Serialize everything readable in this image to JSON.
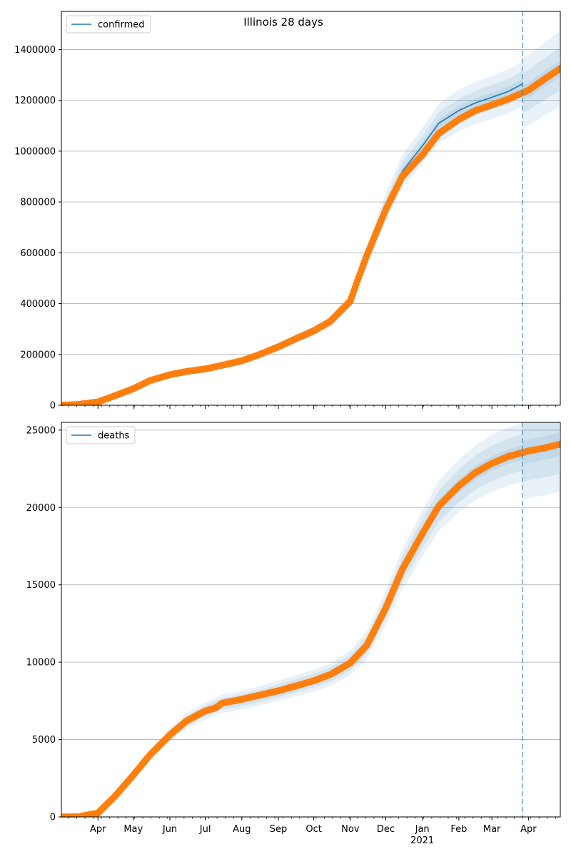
{
  "title": "Illinois 28 days",
  "colors": {
    "model_line": "#1f77b4",
    "band": "#1f77b4",
    "observed": "#ff7f0e",
    "vline": "#1f77b4",
    "grid": "#b0b0b0"
  },
  "chart_data": [
    {
      "type": "line",
      "series": [
        {
          "name": "confirmed",
          "x": [
            "2020-03-01",
            "2020-03-15",
            "2020-04-01",
            "2020-04-15",
            "2020-05-01",
            "2020-05-15",
            "2020-06-01",
            "2020-06-15",
            "2020-07-01",
            "2020-07-15",
            "2020-08-01",
            "2020-08-15",
            "2020-09-01",
            "2020-09-15",
            "2020-10-01",
            "2020-10-15",
            "2020-11-01",
            "2020-11-07",
            "2020-11-15",
            "2020-12-01",
            "2020-12-15",
            "2021-01-01",
            "2021-01-15",
            "2021-02-01",
            "2021-02-15",
            "2021-03-01",
            "2021-03-15",
            "2021-03-27"
          ],
          "values": [
            0,
            3000,
            13000,
            37000,
            65000,
            97000,
            120000,
            133000,
            143000,
            157000,
            175000,
            198000,
            230000,
            260000,
            293000,
            330000,
            410000,
            490000,
            590000,
            780000,
            920000,
            1020000,
            1110000,
            1160000,
            1190000,
            1212000,
            1235000,
            1265000
          ]
        }
      ],
      "observed": {
        "x": [
          "2020-03-01",
          "2020-03-15",
          "2020-04-01",
          "2020-04-15",
          "2020-05-01",
          "2020-05-15",
          "2020-06-01",
          "2020-06-15",
          "2020-07-01",
          "2020-07-15",
          "2020-08-01",
          "2020-08-15",
          "2020-09-01",
          "2020-09-15",
          "2020-10-01",
          "2020-10-15",
          "2020-11-01",
          "2020-11-07",
          "2020-11-15",
          "2020-12-01",
          "2020-12-15",
          "2021-01-01",
          "2021-01-15",
          "2021-02-01",
          "2021-02-15",
          "2021-03-01",
          "2021-03-15",
          "2021-04-01",
          "2021-04-15",
          "2021-04-28"
        ],
        "values": [
          0,
          3000,
          13000,
          37000,
          65000,
          97000,
          120000,
          133000,
          143000,
          157000,
          175000,
          198000,
          230000,
          260000,
          293000,
          330000,
          410000,
          490000,
          590000,
          770000,
          900000,
          985000,
          1070000,
          1125000,
          1160000,
          1182000,
          1205000,
          1240000,
          1285000,
          1325000
        ]
      },
      "band_spread": [
        0.015,
        0.04,
        0.07
      ],
      "forecast_date": "2021-03-27",
      "xlim": [
        "2020-03-01",
        "2021-04-28"
      ],
      "ylim": [
        0,
        1550000
      ],
      "yticks": [
        0,
        200000,
        400000,
        600000,
        800000,
        1000000,
        1200000,
        1400000
      ],
      "ytick_labels": [
        "0",
        "200000",
        "400000",
        "600000",
        "800000",
        "1000000",
        "1200000",
        "1400000"
      ],
      "grid": "horizontal",
      "legend_position": "top-left"
    },
    {
      "type": "line",
      "series": [
        {
          "name": "deaths",
          "x": [
            "2020-03-01",
            "2020-03-15",
            "2020-04-01",
            "2020-04-15",
            "2020-05-01",
            "2020-05-15",
            "2020-06-01",
            "2020-06-15",
            "2020-07-01",
            "2020-07-15",
            "2020-08-01",
            "2020-08-15",
            "2020-09-01",
            "2020-09-15",
            "2020-10-01",
            "2020-10-15",
            "2020-11-01",
            "2020-11-15",
            "2020-12-01",
            "2020-12-15",
            "2021-01-01",
            "2021-01-15",
            "2021-02-01",
            "2021-02-15",
            "2021-03-01",
            "2021-03-15",
            "2021-03-27"
          ],
          "values": [
            0,
            10,
            250,
            1300,
            2700,
            4000,
            5300,
            6200,
            6850,
            7300,
            7550,
            7800,
            8150,
            8450,
            8800,
            9200,
            9950,
            11100,
            13500,
            16000,
            18300,
            20100,
            21400,
            22250,
            22850,
            23300,
            23550
          ]
        }
      ],
      "observed": {
        "x": [
          "2020-03-01",
          "2020-03-15",
          "2020-04-01",
          "2020-04-15",
          "2020-05-01",
          "2020-05-15",
          "2020-06-01",
          "2020-06-15",
          "2020-07-01",
          "2020-07-10",
          "2020-07-15",
          "2020-08-01",
          "2020-08-15",
          "2020-09-01",
          "2020-09-15",
          "2020-10-01",
          "2020-10-15",
          "2020-11-01",
          "2020-11-15",
          "2020-12-01",
          "2020-12-15",
          "2021-01-01",
          "2021-01-15",
          "2021-02-01",
          "2021-02-15",
          "2021-03-01",
          "2021-03-15",
          "2021-04-01",
          "2021-04-15",
          "2021-04-28"
        ],
        "values": [
          0,
          10,
          250,
          1300,
          2700,
          4000,
          5300,
          6200,
          6850,
          7050,
          7350,
          7600,
          7850,
          8150,
          8450,
          8800,
          9200,
          9950,
          11100,
          13500,
          16000,
          18300,
          20100,
          21400,
          22250,
          22850,
          23300,
          23650,
          23850,
          24100
        ]
      },
      "band_spread": [
        0.02,
        0.05,
        0.08
      ],
      "forecast_date": "2021-03-27",
      "xlim": [
        "2020-03-01",
        "2021-04-28"
      ],
      "ylim": [
        0,
        25500
      ],
      "yticks": [
        0,
        5000,
        10000,
        15000,
        20000,
        25000
      ],
      "ytick_labels": [
        "0",
        "5000",
        "10000",
        "15000",
        "20000",
        "25000"
      ],
      "x_major_ticks": [
        {
          "date": "2020-04-01",
          "label": "Apr"
        },
        {
          "date": "2020-05-01",
          "label": "May"
        },
        {
          "date": "2020-06-01",
          "label": "Jun"
        },
        {
          "date": "2020-07-01",
          "label": "Jul"
        },
        {
          "date": "2020-08-01",
          "label": "Aug"
        },
        {
          "date": "2020-09-01",
          "label": "Sep"
        },
        {
          "date": "2020-10-01",
          "label": "Oct"
        },
        {
          "date": "2020-11-01",
          "label": "Nov"
        },
        {
          "date": "2020-12-01",
          "label": "Dec"
        },
        {
          "date": "2021-01-01",
          "label": "Jan",
          "sublabel": "2021"
        },
        {
          "date": "2021-02-01",
          "label": "Feb"
        },
        {
          "date": "2021-03-01",
          "label": "Mar"
        },
        {
          "date": "2021-04-01",
          "label": "Apr"
        }
      ],
      "grid": "horizontal",
      "legend_position": "top-left"
    }
  ]
}
